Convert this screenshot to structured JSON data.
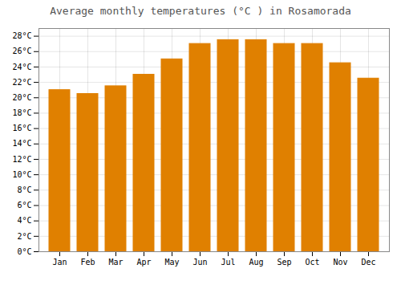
{
  "chart_data": {
    "type": "bar",
    "title": "Average monthly temperatures (°C ) in Rosamorada",
    "categories": [
      "Jan",
      "Feb",
      "Mar",
      "Apr",
      "May",
      "Jun",
      "Jul",
      "Aug",
      "Sep",
      "Oct",
      "Nov",
      "Dec"
    ],
    "values": [
      21.0,
      20.5,
      21.5,
      23.0,
      25.0,
      27.0,
      27.5,
      27.5,
      27.0,
      27.0,
      24.5,
      22.5
    ],
    "color": "#E08000",
    "ylim": [
      0,
      29
    ],
    "yticks": [
      {
        "value": 0,
        "label": "0°C"
      },
      {
        "value": 2,
        "label": "2°C"
      },
      {
        "value": 4,
        "label": "4°C"
      },
      {
        "value": 6,
        "label": "6°C"
      },
      {
        "value": 8,
        "label": "8°C"
      },
      {
        "value": 10,
        "label": "10°C"
      },
      {
        "value": 12,
        "label": "12°C"
      },
      {
        "value": 14,
        "label": "14°C"
      },
      {
        "value": 16,
        "label": "16°C"
      },
      {
        "value": 18,
        "label": "18°C"
      },
      {
        "value": 20,
        "label": "20°C"
      },
      {
        "value": 22,
        "label": "22°C"
      },
      {
        "value": 24,
        "label": "24°C"
      },
      {
        "value": 26,
        "label": "26°C"
      },
      {
        "value": 28,
        "label": "28°C"
      }
    ],
    "grid": true
  }
}
